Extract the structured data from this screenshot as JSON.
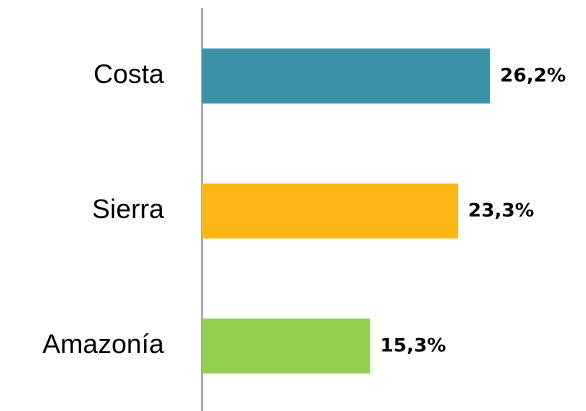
{
  "chart_data": {
    "type": "barh",
    "categories": [
      "Costa",
      "Sierra",
      "Amazonía"
    ],
    "values": [
      26.2,
      23.3,
      15.3
    ],
    "value_labels": [
      "26,2%",
      "23,3%",
      "15,3%"
    ],
    "colors": [
      "#3a93a6",
      "#fdb714",
      "#92d050"
    ]
  }
}
